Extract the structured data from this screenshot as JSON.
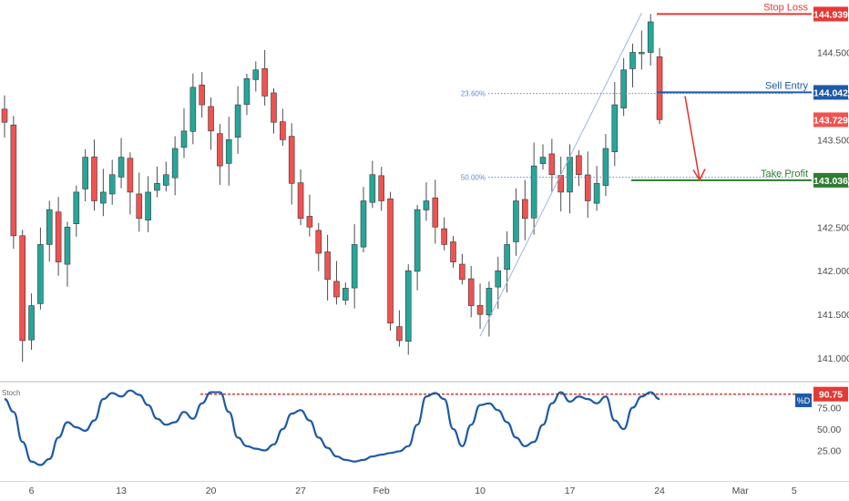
{
  "chart_data": [
    {
      "type": "candlestick",
      "price_axis_ticks": [
        "144.500",
        "144.000",
        "143.500",
        "143.000",
        "142.500",
        "142.000",
        "141.500",
        "141.000"
      ],
      "ylim": [
        140.74,
        145.1
      ],
      "time_axis_ticks": [
        {
          "label": "6",
          "index": 3
        },
        {
          "label": "13",
          "index": 13
        },
        {
          "label": "20",
          "index": 23
        },
        {
          "label": "27",
          "index": 33
        },
        {
          "label": "Feb",
          "index": 42
        },
        {
          "label": "10",
          "index": 53
        },
        {
          "label": "17",
          "index": 63
        },
        {
          "label": "24",
          "index": 73
        },
        {
          "label": "Mar",
          "index": 82
        },
        {
          "label": "5",
          "index": 88
        }
      ],
      "close_path": [
        143.7,
        142.4,
        141.2,
        141.6,
        142.3,
        142.7,
        142.1,
        142.5,
        142.9,
        143.3,
        142.8,
        142.9,
        143.1,
        143.3,
        142.9,
        142.6,
        142.9,
        143.0,
        143.1,
        143.4,
        143.6,
        144.1,
        143.9,
        143.6,
        143.2,
        143.5,
        143.9,
        144.2,
        144.3,
        144.0,
        143.7,
        143.5,
        143.0,
        142.6,
        142.5,
        142.2,
        141.9,
        141.7,
        141.8,
        142.3,
        142.8,
        143.1,
        142.8,
        141.4,
        141.2,
        142.0,
        142.7,
        142.8,
        142.5,
        142.3,
        142.1,
        141.9,
        141.6,
        141.5,
        141.8,
        142.0,
        142.3,
        142.8,
        142.6,
        143.2,
        143.3,
        143.1,
        142.9,
        143.3,
        143.1,
        142.8,
        143.0,
        143.4,
        143.9,
        144.3,
        144.5,
        144.5,
        144.94,
        143.73
      ],
      "levels": [
        {
          "name": "Stop Loss",
          "value": "144.939",
          "price": 144.939,
          "color": "#e53935"
        },
        {
          "name": "Sell Entry",
          "value": "144.042",
          "price": 144.042,
          "color": "#1e5aa8"
        },
        {
          "name": "Take Profit",
          "value": "143.036",
          "price": 143.036,
          "color": "#2e7d32"
        }
      ],
      "last_price": {
        "value": "143.729",
        "price": 143.729,
        "color": "#ef5350"
      },
      "fib_levels": [
        {
          "label": "23.60%",
          "price": 144.03
        },
        {
          "label": "50.00%",
          "price": 143.07
        }
      ],
      "bull_color": "#26a69a",
      "bear_color": "#ef5350"
    },
    {
      "type": "line",
      "indicator": "Stoch",
      "series_label": "%D",
      "y_ticks": [
        "75.00",
        "50.00",
        "25.00"
      ],
      "ylim": [
        0,
        100
      ],
      "level_value": "90.75",
      "level": 90.75,
      "series": [
        {
          "name": "%D",
          "color": "#1e5aa8",
          "values": [
            85,
            70,
            35,
            12,
            8,
            15,
            40,
            58,
            52,
            48,
            60,
            85,
            92,
            88,
            95,
            90,
            78,
            62,
            55,
            58,
            70,
            62,
            80,
            93,
            93,
            70,
            40,
            30,
            27,
            25,
            32,
            50,
            68,
            72,
            60,
            40,
            28,
            18,
            14,
            12,
            14,
            18,
            20,
            22,
            24,
            30,
            55,
            88,
            92,
            85,
            50,
            30,
            55,
            78,
            80,
            72,
            58,
            40,
            30,
            35,
            55,
            80,
            93,
            82,
            88,
            85,
            80,
            88,
            60,
            50,
            75,
            88,
            93,
            85
          ]
        }
      ]
    }
  ]
}
